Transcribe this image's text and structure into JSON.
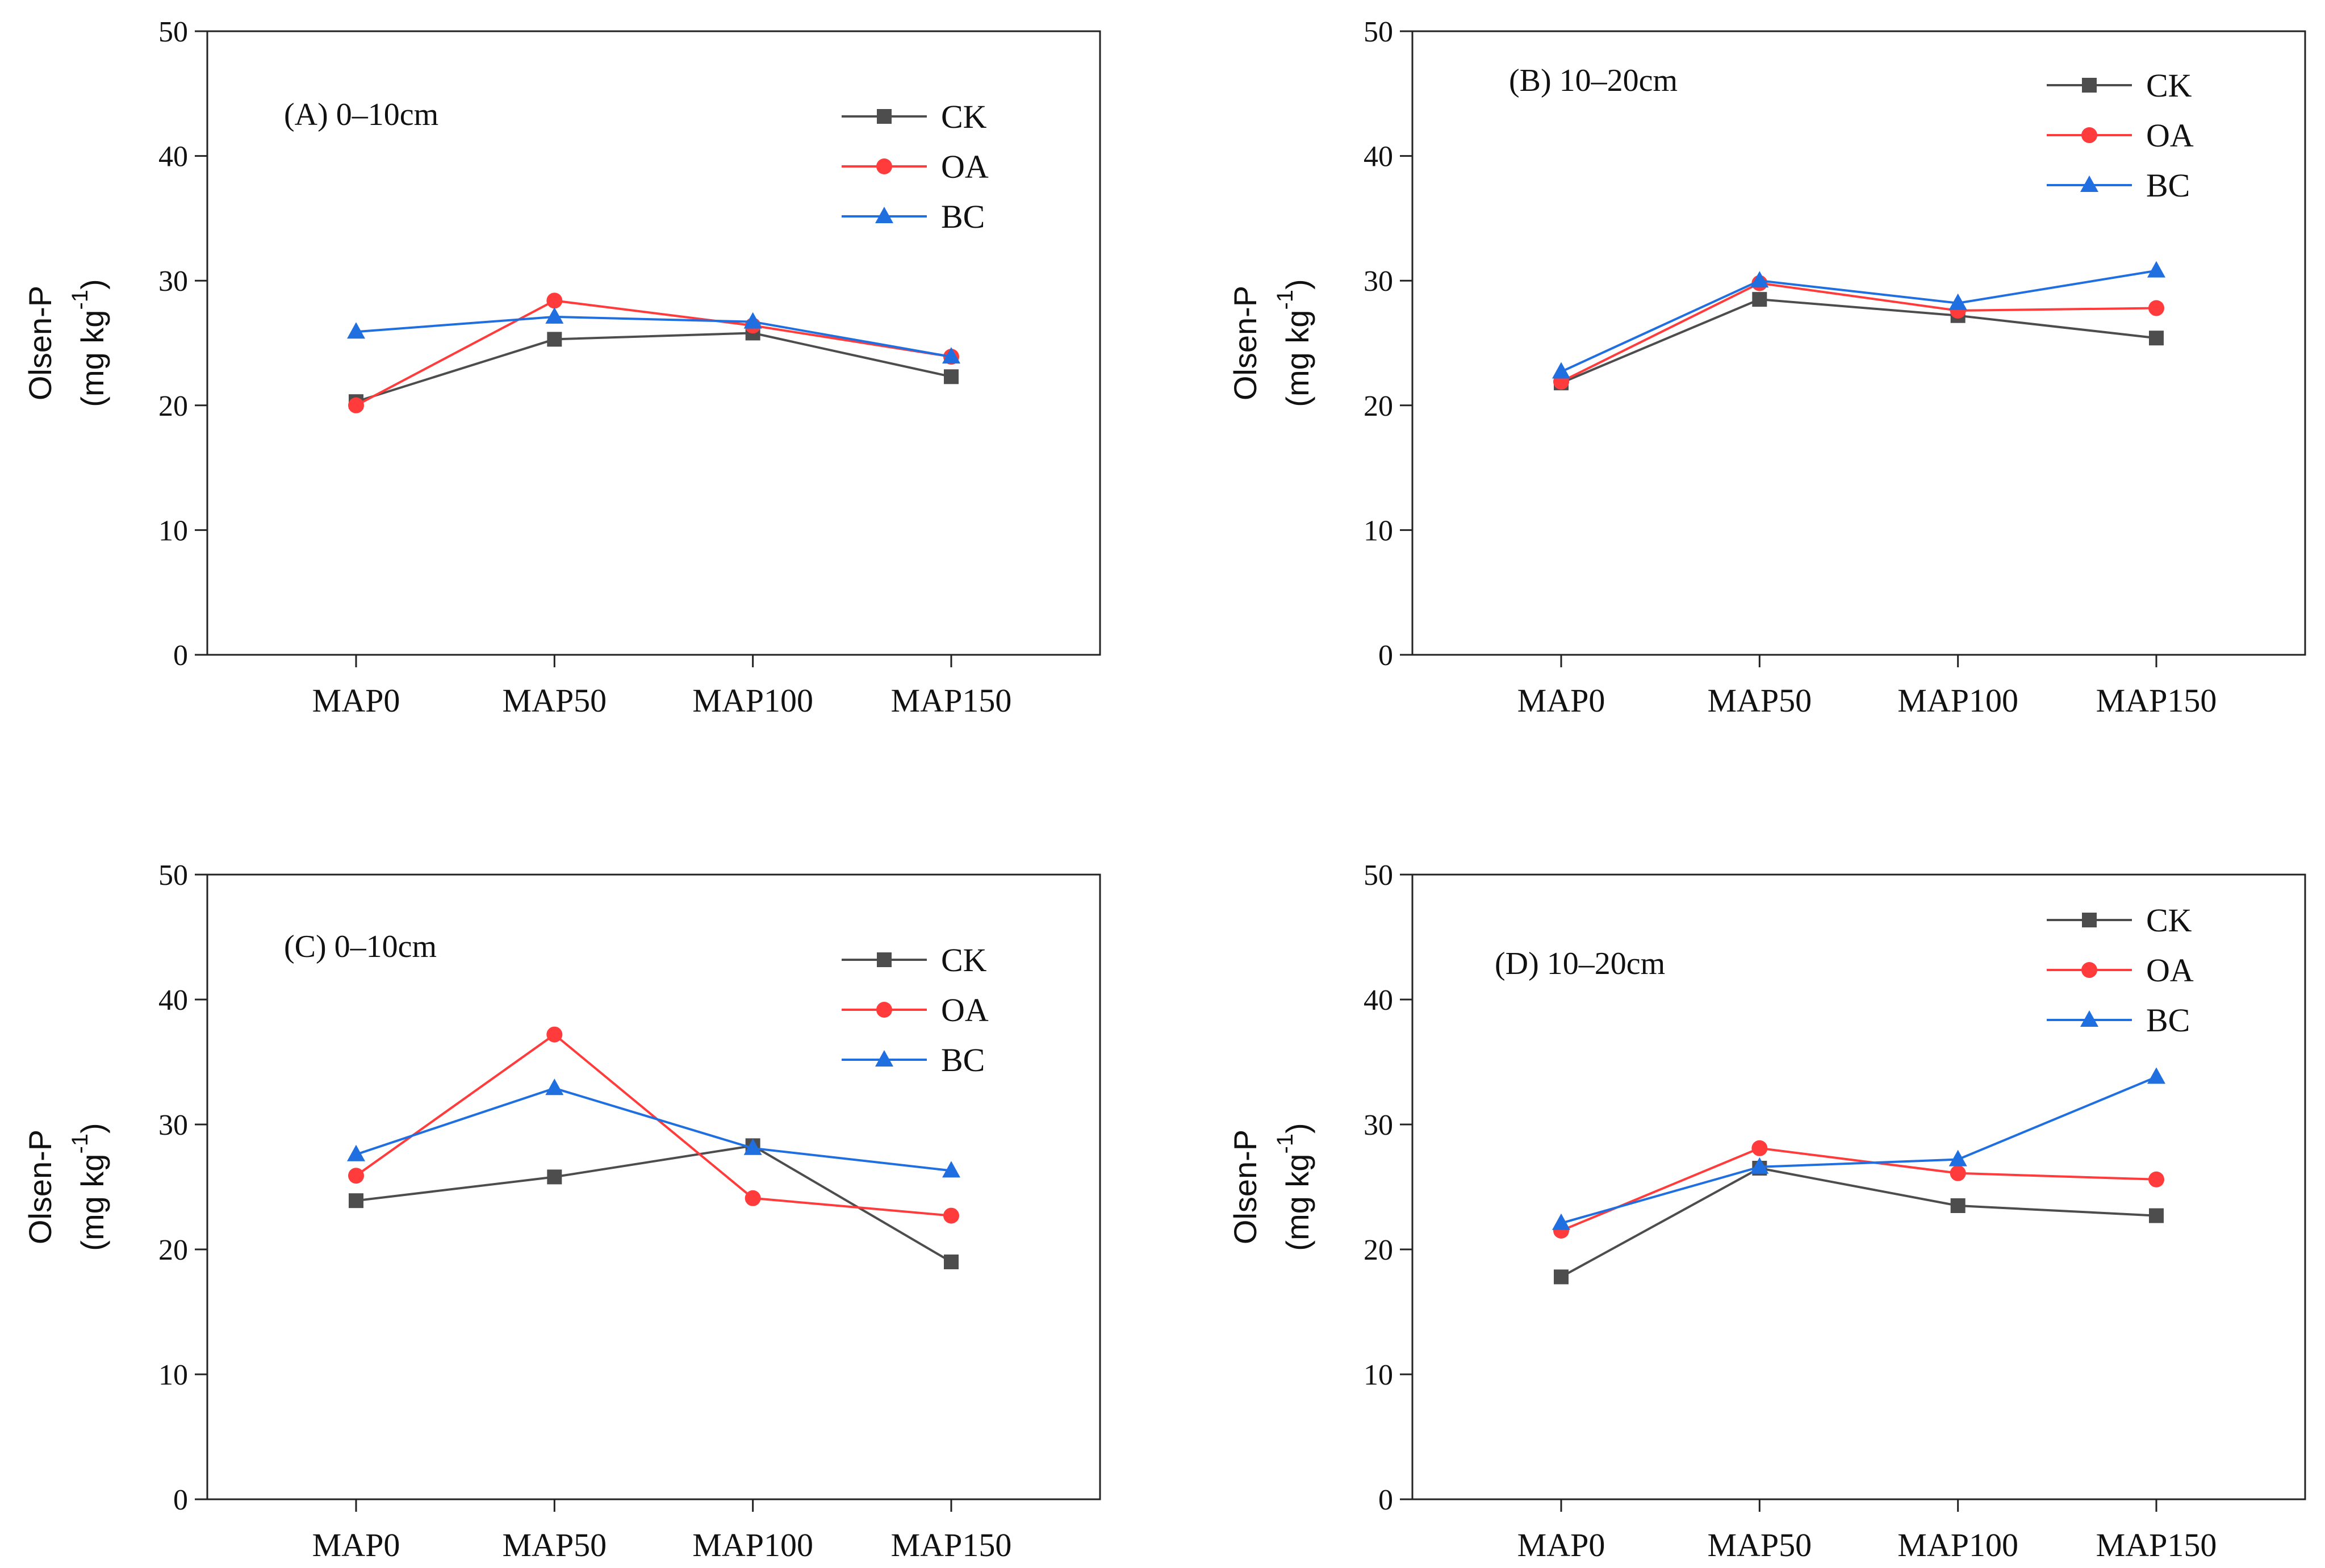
{
  "chart_data": [
    {
      "type": "line",
      "title": "(A) 0–10cm",
      "xlabel": "",
      "ylabel": "Olsen-P",
      "ylabel_unit": "(mg kg",
      "ylabel_sup": "-1",
      "ylabel_close": ")",
      "ylim": [
        0,
        50
      ],
      "yticks": [
        "0",
        "10",
        "20",
        "30",
        "40",
        "50"
      ],
      "categories": [
        "MAP0",
        "MAP50",
        "MAP100",
        "MAP150"
      ],
      "legend_position": "top-right",
      "series": [
        {
          "name": "CK",
          "color": "#4d4d4d",
          "marker": "square",
          "values": [
            20.3,
            25.3,
            25.8,
            22.3
          ]
        },
        {
          "name": "OA",
          "color": "#ff3b3b",
          "marker": "circle",
          "values": [
            20.0,
            28.4,
            26.4,
            23.9
          ]
        },
        {
          "name": "BC",
          "color": "#1f6fe0",
          "marker": "triangle",
          "values": [
            25.9,
            27.1,
            26.7,
            23.9
          ]
        }
      ]
    },
    {
      "type": "line",
      "title": "(B) 10–20cm",
      "xlabel": "",
      "ylabel": "Olsen-P",
      "ylabel_unit": "(mg kg",
      "ylabel_sup": "-1",
      "ylabel_close": ")",
      "ylim": [
        0,
        50
      ],
      "yticks": [
        "0",
        "10",
        "20",
        "30",
        "40",
        "50"
      ],
      "categories": [
        "MAP0",
        "MAP50",
        "MAP100",
        "MAP150"
      ],
      "legend_position": "top-right",
      "series": [
        {
          "name": "CK",
          "color": "#4d4d4d",
          "marker": "square",
          "values": [
            21.8,
            28.5,
            27.2,
            25.4
          ]
        },
        {
          "name": "OA",
          "color": "#ff3b3b",
          "marker": "circle",
          "values": [
            21.9,
            29.8,
            27.6,
            27.8
          ]
        },
        {
          "name": "BC",
          "color": "#1f6fe0",
          "marker": "triangle",
          "values": [
            22.7,
            30.0,
            28.2,
            30.8
          ]
        }
      ]
    },
    {
      "type": "line",
      "title": "(C) 0–10cm",
      "xlabel": "",
      "ylabel": "Olsen-P",
      "ylabel_unit": "(mg kg",
      "ylabel_sup": "-1",
      "ylabel_close": ")",
      "ylim": [
        0,
        50
      ],
      "yticks": [
        "0",
        "10",
        "20",
        "30",
        "40",
        "50"
      ],
      "categories": [
        "MAP0",
        "MAP50",
        "MAP100",
        "MAP150"
      ],
      "legend_position": "top-right",
      "series": [
        {
          "name": "CK",
          "color": "#4d4d4d",
          "marker": "square",
          "values": [
            23.9,
            25.8,
            28.3,
            19.0
          ]
        },
        {
          "name": "OA",
          "color": "#ff3b3b",
          "marker": "circle",
          "values": [
            25.9,
            37.2,
            24.1,
            22.7
          ]
        },
        {
          "name": "BC",
          "color": "#1f6fe0",
          "marker": "triangle",
          "values": [
            27.6,
            32.9,
            28.1,
            26.3
          ]
        }
      ]
    },
    {
      "type": "line",
      "title": "(D) 10–20cm",
      "xlabel": "",
      "ylabel": "Olsen-P",
      "ylabel_unit": "(mg kg",
      "ylabel_sup": "-1",
      "ylabel_close": ")",
      "ylim": [
        0,
        50
      ],
      "yticks": [
        "0",
        "10",
        "20",
        "30",
        "40",
        "50"
      ],
      "categories": [
        "MAP0",
        "MAP50",
        "MAP100",
        "MAP150"
      ],
      "legend_position": "top-right",
      "series": [
        {
          "name": "CK",
          "color": "#4d4d4d",
          "marker": "square",
          "values": [
            17.8,
            26.5,
            23.5,
            22.7
          ]
        },
        {
          "name": "OA",
          "color": "#ff3b3b",
          "marker": "circle",
          "values": [
            21.5,
            28.1,
            26.1,
            25.6
          ]
        },
        {
          "name": "BC",
          "color": "#1f6fe0",
          "marker": "triangle",
          "values": [
            22.1,
            26.6,
            27.2,
            33.8
          ]
        }
      ]
    }
  ]
}
